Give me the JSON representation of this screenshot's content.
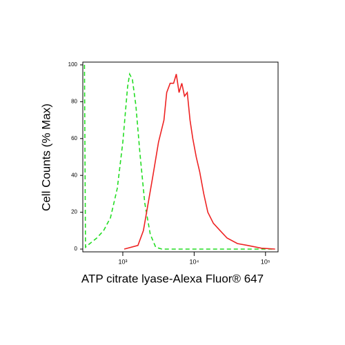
{
  "chart_data": {
    "type": "line",
    "xlabel": "ATP citrate lyase-Alexa Fluor® 647",
    "ylabel": "Cell Counts (% Max)",
    "xscale": "log",
    "xlim": [
      275,
      150000
    ],
    "ylim": [
      -1.5,
      101.5
    ],
    "xticks": [
      {
        "value": 1000,
        "label": "10³"
      },
      {
        "value": 10000,
        "label": "10⁴"
      },
      {
        "value": 100000,
        "label": "10⁵"
      }
    ],
    "yticks": [
      0,
      20,
      40,
      60,
      80,
      100
    ],
    "series": [
      {
        "color": "#22dd22",
        "dash": true,
        "x": [
          290,
          300,
          345,
          431,
          538,
          671,
          838,
          1000,
          1167,
          1248,
          1364,
          1524,
          1738,
          2030,
          2426,
          2896,
          3532,
          6138,
          14900,
          45100,
          136400
        ],
        "values": [
          100,
          1,
          3,
          6,
          10,
          17,
          33,
          58,
          88,
          95,
          92,
          78,
          52,
          25,
          8,
          1,
          0,
          0,
          0,
          0,
          0
        ]
      },
      {
        "color": "#ee2222",
        "dash": false,
        "x": [
          1045,
          1630,
          1942,
          2270,
          2650,
          3162,
          3776,
          4125,
          4605,
          5150,
          5623,
          6138,
          6714,
          7330,
          8015,
          8750,
          9560,
          10690,
          11950,
          13640,
          15560,
          18580,
          23180,
          28960,
          40380,
          56230,
          87540,
          136400
        ],
        "values": [
          0,
          2,
          10,
          25,
          40,
          58,
          70,
          85,
          90,
          90,
          95,
          85,
          90,
          83,
          85,
          70,
          60,
          50,
          42,
          30,
          20,
          14,
          10,
          6,
          3,
          2,
          0.5,
          0
        ]
      }
    ]
  }
}
